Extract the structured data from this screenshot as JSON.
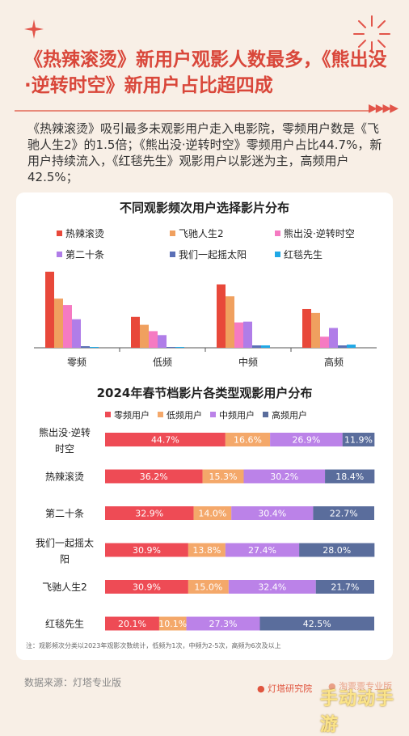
{
  "header": {
    "title": "《热辣滚烫》新用户观影人数最多，《熊出没·逆转时空》新用户占比超四成",
    "intro": "《热辣滚烫》吸引最多未观影用户走入电影院，零频用户数是《飞驰人生2》的1.5倍；《熊出没·逆转时空》零频用户占比44.7%，新用户持续流入，《红毯先生》观影用户以影迷为主，高频用户42.5%；"
  },
  "colors": {
    "accent": "#d9473a",
    "background": "#f8efe6",
    "films": [
      "#e8483a",
      "#f0a05f",
      "#f57ac2",
      "#b07de8",
      "#5a6fb6",
      "#1fa8e6"
    ],
    "segments": [
      "#ee4b55",
      "#f4a86a",
      "#bb82e8",
      "#5a6d9c"
    ]
  },
  "chart_data": [
    {
      "type": "bar",
      "title": "不同观影频次用户选择影片分布",
      "categories": [
        "零频",
        "低频",
        "中频",
        "高频"
      ],
      "ylim": [
        0,
        100
      ],
      "grid": false,
      "legend_position": "top",
      "series": [
        {
          "name": "热辣滚烫",
          "values": [
            96,
            39,
            80,
            49
          ]
        },
        {
          "name": "飞驰人生2",
          "values": [
            62,
            29,
            65,
            44
          ]
        },
        {
          "name": "熊出没·逆转时空",
          "values": [
            54,
            21,
            32,
            14
          ]
        },
        {
          "name": "第二十条",
          "values": [
            36,
            16,
            33,
            25
          ]
        },
        {
          "name": "我们一起摇太阳",
          "values": [
            2,
            1,
            3,
            3
          ]
        },
        {
          "name": "红毯先生",
          "values": [
            1,
            1,
            3,
            4
          ]
        }
      ]
    },
    {
      "type": "bar",
      "orientation": "horizontal",
      "stacked": true,
      "title": "2024年春节档影片各类型观影用户分布",
      "legend_position": "top",
      "categories": [
        "熊出没·逆转时空",
        "热辣滚烫",
        "第二十条",
        "我们一起摇太阳",
        "飞驰人生2",
        "红毯先生"
      ],
      "xlim": [
        0,
        100
      ],
      "series": [
        {
          "name": "零频用户",
          "values": [
            44.7,
            36.2,
            32.9,
            30.9,
            30.9,
            20.1
          ],
          "labels": [
            "44.7%",
            "36.2%",
            "32.9%",
            "30.9%",
            "30.9%",
            "20.1%"
          ]
        },
        {
          "name": "低频用户",
          "values": [
            16.6,
            15.3,
            14.0,
            13.8,
            15.0,
            10.1
          ],
          "labels": [
            "16.6%",
            "15.3%",
            "14.0%",
            "13.8%",
            "15.0%",
            "10.1%"
          ]
        },
        {
          "name": "中频用户",
          "values": [
            26.9,
            30.2,
            30.4,
            27.4,
            32.4,
            27.3
          ],
          "labels": [
            "26.9%",
            "30.2%",
            "30.4%",
            "27.4%",
            "32.4%",
            "27.3%"
          ]
        },
        {
          "name": "高频用户",
          "values": [
            11.9,
            18.4,
            22.7,
            28.0,
            21.7,
            42.5
          ],
          "labels": [
            "11.9%",
            "18.4%",
            "22.7%",
            "28.0%",
            "21.7%",
            "42.5%"
          ]
        }
      ]
    }
  ],
  "footer": {
    "note": "注：观影频次分类以2023年观影次数统计，低频为1次，中频为2-5次，高频为6次及以上",
    "source": "数据来源：灯塔专业版",
    "brand": "灯塔研究院",
    "brand2": "淘票票专业版",
    "watermark": "手动动手游"
  }
}
